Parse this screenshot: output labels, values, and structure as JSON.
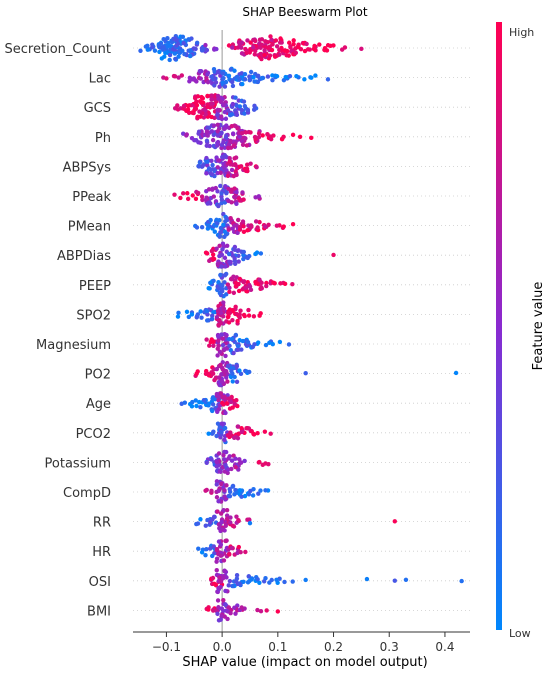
{
  "chart_data": {
    "type": "scatter",
    "title": "SHAP Beeswarm Plot",
    "xlabel": "SHAP value (impact on model output)",
    "xlim": [
      -0.16,
      0.445
    ],
    "xticks": [
      -0.1,
      0.0,
      0.1,
      0.2,
      0.3,
      0.4
    ],
    "xtick_labels": [
      "−0.1",
      "0.0",
      "0.1",
      "0.2",
      "0.3",
      "0.4"
    ],
    "colorbar": {
      "label": "Feature value",
      "high": "High",
      "low": "Low",
      "high_color": "#ff0052",
      "mid_color": "#8a2ad0",
      "low_color": "#0087fc"
    },
    "features": [
      {
        "name": "Secretion_Count",
        "points": [
          [
            -0.14,
            0.1,
            5
          ],
          [
            -0.12,
            0.15,
            10
          ],
          [
            -0.1,
            0.1,
            25
          ],
          [
            -0.08,
            0.15,
            35
          ],
          [
            -0.06,
            0.2,
            20
          ],
          [
            -0.04,
            0.3,
            10
          ],
          [
            -0.02,
            0.4,
            5
          ],
          [
            0.02,
            0.8,
            5
          ],
          [
            0.04,
            0.85,
            15
          ],
          [
            0.06,
            0.85,
            20
          ],
          [
            0.08,
            0.9,
            25
          ],
          [
            0.1,
            0.9,
            20
          ],
          [
            0.12,
            0.9,
            15
          ],
          [
            0.14,
            0.95,
            10
          ],
          [
            0.16,
            0.95,
            8
          ],
          [
            0.18,
            1.0,
            5
          ],
          [
            0.2,
            1.0,
            3
          ],
          [
            0.22,
            1.0,
            2
          ],
          [
            0.25,
            1.0,
            1
          ]
        ]
      },
      {
        "name": "Lac",
        "points": [
          [
            -0.1,
            0.85,
            2
          ],
          [
            -0.08,
            0.8,
            4
          ],
          [
            -0.05,
            0.7,
            8
          ],
          [
            -0.03,
            0.6,
            12
          ],
          [
            -0.01,
            0.3,
            20
          ],
          [
            0.01,
            0.2,
            18
          ],
          [
            0.03,
            0.15,
            14
          ],
          [
            0.05,
            0.15,
            10
          ],
          [
            0.07,
            0.15,
            8
          ],
          [
            0.09,
            0.15,
            6
          ],
          [
            0.11,
            0.1,
            4
          ],
          [
            0.13,
            0.1,
            3
          ],
          [
            0.15,
            0.1,
            2
          ],
          [
            0.17,
            0.1,
            2
          ],
          [
            0.19,
            0.1,
            1
          ]
        ]
      },
      {
        "name": "GCS",
        "points": [
          [
            -0.08,
            0.95,
            4
          ],
          [
            -0.06,
            0.95,
            14
          ],
          [
            -0.04,
            0.95,
            26
          ],
          [
            -0.02,
            0.9,
            30
          ],
          [
            0.0,
            0.55,
            26
          ],
          [
            0.02,
            0.3,
            20
          ],
          [
            0.04,
            0.2,
            12
          ],
          [
            0.06,
            0.15,
            4
          ]
        ]
      },
      {
        "name": "Ph",
        "points": [
          [
            -0.06,
            0.55,
            4
          ],
          [
            -0.04,
            0.5,
            12
          ],
          [
            -0.02,
            0.45,
            24
          ],
          [
            0.0,
            0.5,
            30
          ],
          [
            0.02,
            0.65,
            24
          ],
          [
            0.04,
            0.7,
            18
          ],
          [
            0.06,
            0.8,
            10
          ],
          [
            0.08,
            0.9,
            6
          ],
          [
            0.1,
            0.95,
            3
          ],
          [
            0.12,
            1.0,
            2
          ],
          [
            0.14,
            1.0,
            1
          ],
          [
            0.16,
            1.0,
            1
          ]
        ]
      },
      {
        "name": "ABPSys",
        "points": [
          [
            -0.04,
            0.3,
            8
          ],
          [
            -0.02,
            0.3,
            20
          ],
          [
            0.0,
            0.5,
            28
          ],
          [
            0.02,
            0.75,
            20
          ],
          [
            0.04,
            0.85,
            8
          ],
          [
            0.06,
            0.9,
            3
          ]
        ]
      },
      {
        "name": "PPeak",
        "points": [
          [
            -0.08,
            0.95,
            2
          ],
          [
            -0.06,
            0.95,
            4
          ],
          [
            -0.04,
            0.9,
            6
          ],
          [
            -0.02,
            0.5,
            16
          ],
          [
            0.0,
            0.35,
            22
          ],
          [
            0.02,
            0.65,
            16
          ],
          [
            0.04,
            0.75,
            8
          ],
          [
            0.06,
            0.7,
            3
          ]
        ]
      },
      {
        "name": "PMean",
        "points": [
          [
            -0.04,
            0.1,
            3
          ],
          [
            -0.02,
            0.1,
            14
          ],
          [
            0.0,
            0.2,
            24
          ],
          [
            0.02,
            0.7,
            18
          ],
          [
            0.04,
            0.85,
            12
          ],
          [
            0.06,
            0.9,
            8
          ],
          [
            0.08,
            0.9,
            5
          ],
          [
            0.1,
            0.95,
            3
          ],
          [
            0.12,
            1.0,
            2
          ]
        ]
      },
      {
        "name": "ABPDias",
        "points": [
          [
            -0.02,
            0.9,
            12
          ],
          [
            0.0,
            0.55,
            26
          ],
          [
            0.02,
            0.3,
            18
          ],
          [
            0.04,
            0.2,
            8
          ],
          [
            0.06,
            0.15,
            3
          ],
          [
            0.2,
            1.0,
            1
          ]
        ]
      },
      {
        "name": "PEEP",
        "points": [
          [
            -0.02,
            0.1,
            6
          ],
          [
            0.0,
            0.2,
            24
          ],
          [
            0.02,
            0.8,
            18
          ],
          [
            0.04,
            0.9,
            14
          ],
          [
            0.06,
            0.9,
            10
          ],
          [
            0.08,
            0.95,
            7
          ],
          [
            0.1,
            0.95,
            4
          ],
          [
            0.12,
            1.0,
            2
          ]
        ]
      },
      {
        "name": "SPO2",
        "points": [
          [
            -0.08,
            0.05,
            2
          ],
          [
            -0.06,
            0.05,
            4
          ],
          [
            -0.04,
            0.1,
            6
          ],
          [
            -0.02,
            0.2,
            12
          ],
          [
            0.0,
            0.7,
            28
          ],
          [
            0.02,
            0.95,
            18
          ],
          [
            0.04,
            0.95,
            8
          ],
          [
            0.06,
            1.0,
            3
          ]
        ]
      },
      {
        "name": "Magnesium",
        "points": [
          [
            -0.02,
            0.95,
            8
          ],
          [
            0.0,
            0.55,
            26
          ],
          [
            0.02,
            0.25,
            18
          ],
          [
            0.04,
            0.15,
            10
          ],
          [
            0.06,
            0.1,
            6
          ],
          [
            0.08,
            0.1,
            3
          ],
          [
            0.1,
            0.05,
            2
          ],
          [
            0.12,
            0.05,
            1
          ]
        ]
      },
      {
        "name": "PO2",
        "points": [
          [
            -0.04,
            0.9,
            3
          ],
          [
            -0.02,
            0.95,
            12
          ],
          [
            0.0,
            0.6,
            26
          ],
          [
            0.02,
            0.2,
            18
          ],
          [
            0.04,
            0.1,
            6
          ],
          [
            0.15,
            0.1,
            1
          ],
          [
            0.42,
            0.1,
            1
          ]
        ]
      },
      {
        "name": "Age",
        "points": [
          [
            -0.07,
            0.05,
            2
          ],
          [
            -0.05,
            0.05,
            6
          ],
          [
            -0.03,
            0.1,
            10
          ],
          [
            -0.01,
            0.2,
            16
          ],
          [
            0.0,
            0.6,
            20
          ],
          [
            0.01,
            0.85,
            12
          ],
          [
            0.02,
            0.95,
            4
          ]
        ]
      },
      {
        "name": "PCO2",
        "points": [
          [
            -0.02,
            0.1,
            4
          ],
          [
            0.0,
            0.3,
            22
          ],
          [
            0.02,
            0.85,
            12
          ],
          [
            0.04,
            0.9,
            8
          ],
          [
            0.06,
            0.95,
            5
          ],
          [
            0.08,
            1.0,
            2
          ]
        ]
      },
      {
        "name": "Potassium",
        "points": [
          [
            -0.02,
            0.3,
            8
          ],
          [
            0.0,
            0.5,
            26
          ],
          [
            0.02,
            0.6,
            14
          ],
          [
            0.04,
            0.55,
            4
          ],
          [
            0.07,
            0.95,
            3
          ],
          [
            0.08,
            1.0,
            2
          ]
        ]
      },
      {
        "name": "CompD",
        "points": [
          [
            -0.02,
            0.85,
            4
          ],
          [
            0.0,
            0.55,
            22
          ],
          [
            0.02,
            0.2,
            12
          ],
          [
            0.04,
            0.1,
            8
          ],
          [
            0.06,
            0.1,
            5
          ],
          [
            0.08,
            0.1,
            2
          ]
        ]
      },
      {
        "name": "RR",
        "points": [
          [
            -0.04,
            0.1,
            3
          ],
          [
            -0.02,
            0.25,
            10
          ],
          [
            0.0,
            0.6,
            24
          ],
          [
            0.02,
            0.8,
            10
          ],
          [
            0.04,
            0.7,
            3
          ],
          [
            0.05,
            0.1,
            1
          ],
          [
            0.31,
            1.0,
            1
          ]
        ]
      },
      {
        "name": "HR",
        "points": [
          [
            -0.04,
            0.05,
            3
          ],
          [
            -0.02,
            0.2,
            10
          ],
          [
            0.0,
            0.6,
            24
          ],
          [
            0.02,
            0.8,
            10
          ],
          [
            0.04,
            0.7,
            2
          ]
        ]
      },
      {
        "name": "OSI",
        "points": [
          [
            -0.01,
            0.9,
            8
          ],
          [
            0.0,
            0.55,
            24
          ],
          [
            0.02,
            0.2,
            10
          ],
          [
            0.04,
            0.1,
            8
          ],
          [
            0.06,
            0.1,
            6
          ],
          [
            0.08,
            0.1,
            4
          ],
          [
            0.1,
            0.1,
            3
          ],
          [
            0.12,
            0.1,
            2
          ],
          [
            0.15,
            0.1,
            1
          ],
          [
            0.26,
            0.1,
            1
          ],
          [
            0.31,
            0.1,
            1
          ],
          [
            0.33,
            0.1,
            1
          ],
          [
            0.43,
            0.1,
            1
          ]
        ]
      },
      {
        "name": "BMI",
        "points": [
          [
            -0.02,
            0.85,
            6
          ],
          [
            0.0,
            0.55,
            22
          ],
          [
            0.02,
            0.6,
            10
          ],
          [
            0.04,
            0.7,
            4
          ],
          [
            0.06,
            0.85,
            2
          ],
          [
            0.08,
            0.95,
            1
          ],
          [
            0.1,
            1.0,
            1
          ]
        ]
      }
    ]
  }
}
